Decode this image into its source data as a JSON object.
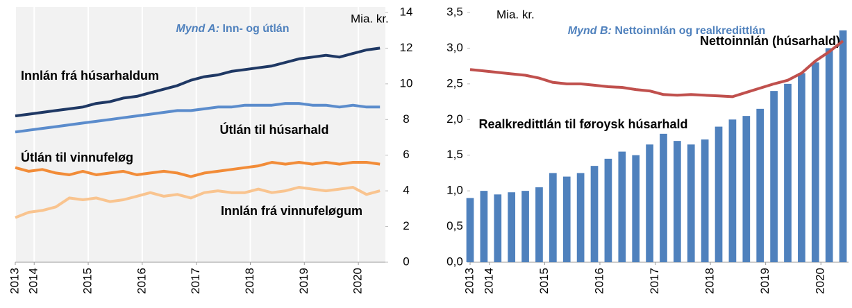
{
  "chart_data": [
    {
      "type": "line",
      "title_label": "Mynd A:",
      "title": "Inn- og útlán",
      "unit": "Mia. kr.",
      "x": [
        2013.65,
        2013.9,
        2014.15,
        2014.4,
        2014.65,
        2014.9,
        2015.15,
        2015.4,
        2015.65,
        2015.9,
        2016.15,
        2016.4,
        2016.65,
        2016.9,
        2017.15,
        2017.4,
        2017.65,
        2017.9,
        2018.15,
        2018.4,
        2018.65,
        2018.9,
        2019.15,
        2019.4,
        2019.65,
        2019.9,
        2020.15,
        2020.4
      ],
      "xlim": [
        2013.65,
        2020.5
      ],
      "xticks": [
        {
          "value": 2013.65,
          "label": "2013"
        },
        2014,
        2015,
        2016,
        2017,
        2018,
        2019,
        2020
      ],
      "ylim": [
        0,
        14
      ],
      "yticks": [
        0,
        2,
        4,
        6,
        8,
        10,
        12,
        14
      ],
      "grid": true,
      "series": [
        {
          "name": "Innlán frá húsarhaldum",
          "color": "#1f3864",
          "values": [
            8.2,
            8.3,
            8.4,
            8.5,
            8.6,
            8.7,
            8.9,
            9.0,
            9.2,
            9.3,
            9.5,
            9.7,
            9.9,
            10.2,
            10.4,
            10.5,
            10.7,
            10.8,
            10.9,
            11.0,
            11.2,
            11.4,
            11.5,
            11.6,
            11.5,
            11.7,
            11.9,
            12.0
          ]
        },
        {
          "name": "Útlán til húsarhald",
          "color": "#5b8ccc",
          "values": [
            7.3,
            7.4,
            7.5,
            7.6,
            7.7,
            7.8,
            7.9,
            8.0,
            8.1,
            8.2,
            8.3,
            8.4,
            8.5,
            8.5,
            8.6,
            8.7,
            8.7,
            8.8,
            8.8,
            8.8,
            8.9,
            8.9,
            8.8,
            8.8,
            8.7,
            8.8,
            8.7,
            8.7
          ]
        },
        {
          "name": "Útlán til vinnufeløg",
          "color": "#f28c38",
          "values": [
            5.3,
            5.1,
            5.2,
            5.0,
            4.9,
            5.1,
            4.9,
            5.0,
            5.1,
            4.9,
            5.0,
            5.1,
            5.0,
            4.8,
            5.0,
            5.1,
            5.2,
            5.3,
            5.4,
            5.6,
            5.5,
            5.6,
            5.5,
            5.6,
            5.5,
            5.6,
            5.6,
            5.5
          ]
        },
        {
          "name": "Innlán frá vinnufeløgum",
          "color": "#f9c48f",
          "values": [
            2.5,
            2.8,
            2.9,
            3.1,
            3.6,
            3.5,
            3.6,
            3.4,
            3.5,
            3.7,
            3.9,
            3.7,
            3.8,
            3.6,
            3.9,
            4.0,
            3.9,
            3.9,
            4.1,
            3.9,
            4.0,
            4.2,
            4.1,
            4.0,
            4.1,
            4.2,
            3.8,
            4.0
          ]
        }
      ]
    },
    {
      "type": "bar",
      "title_label": "Mynd B:",
      "title": "Nettoinnlán og realkredittlán",
      "unit": "Mia. kr.",
      "x": [
        2013.65,
        2013.9,
        2014.15,
        2014.4,
        2014.65,
        2014.9,
        2015.15,
        2015.4,
        2015.65,
        2015.9,
        2016.15,
        2016.4,
        2016.65,
        2016.9,
        2017.15,
        2017.4,
        2017.65,
        2017.9,
        2018.15,
        2018.4,
        2018.65,
        2018.9,
        2019.15,
        2019.4,
        2019.65,
        2019.9,
        2020.15,
        2020.4
      ],
      "xlim": [
        2013.65,
        2020.5
      ],
      "xticks": [
        {
          "value": 2013.65,
          "label": "2013"
        },
        2014,
        2015,
        2016,
        2017,
        2018,
        2019,
        2020
      ],
      "ylim": [
        0,
        3.5
      ],
      "yticks": [
        {
          "value": 0,
          "label": "0,0"
        },
        {
          "value": 0.5,
          "label": "0,5"
        },
        {
          "value": 1,
          "label": "1,0"
        },
        {
          "value": 1.5,
          "label": "1,5"
        },
        {
          "value": 2,
          "label": "2,0"
        },
        {
          "value": 2.5,
          "label": "2,5"
        },
        {
          "value": 3,
          "label": "3,0"
        },
        {
          "value": 3.5,
          "label": "3,5"
        }
      ],
      "series": [
        {
          "name": "Nettoinnlán (húsarhald)",
          "type": "bar",
          "color": "#4f81bd",
          "values": [
            0.9,
            1.0,
            0.95,
            0.98,
            1.0,
            1.05,
            1.25,
            1.2,
            1.25,
            1.35,
            1.45,
            1.55,
            1.5,
            1.65,
            1.8,
            1.7,
            1.65,
            1.72,
            1.9,
            2.0,
            2.05,
            2.15,
            2.4,
            2.5,
            2.65,
            2.8,
            3.0,
            3.25
          ]
        },
        {
          "name": "Realkredittlán til føroysk húsarhald",
          "type": "line",
          "color": "#c0504d",
          "values": [
            2.7,
            2.68,
            2.66,
            2.64,
            2.62,
            2.58,
            2.52,
            2.5,
            2.5,
            2.48,
            2.46,
            2.45,
            2.42,
            2.4,
            2.35,
            2.34,
            2.35,
            2.34,
            2.33,
            2.32,
            2.38,
            2.44,
            2.5,
            2.55,
            2.65,
            2.82,
            2.95,
            3.1
          ]
        }
      ]
    }
  ]
}
